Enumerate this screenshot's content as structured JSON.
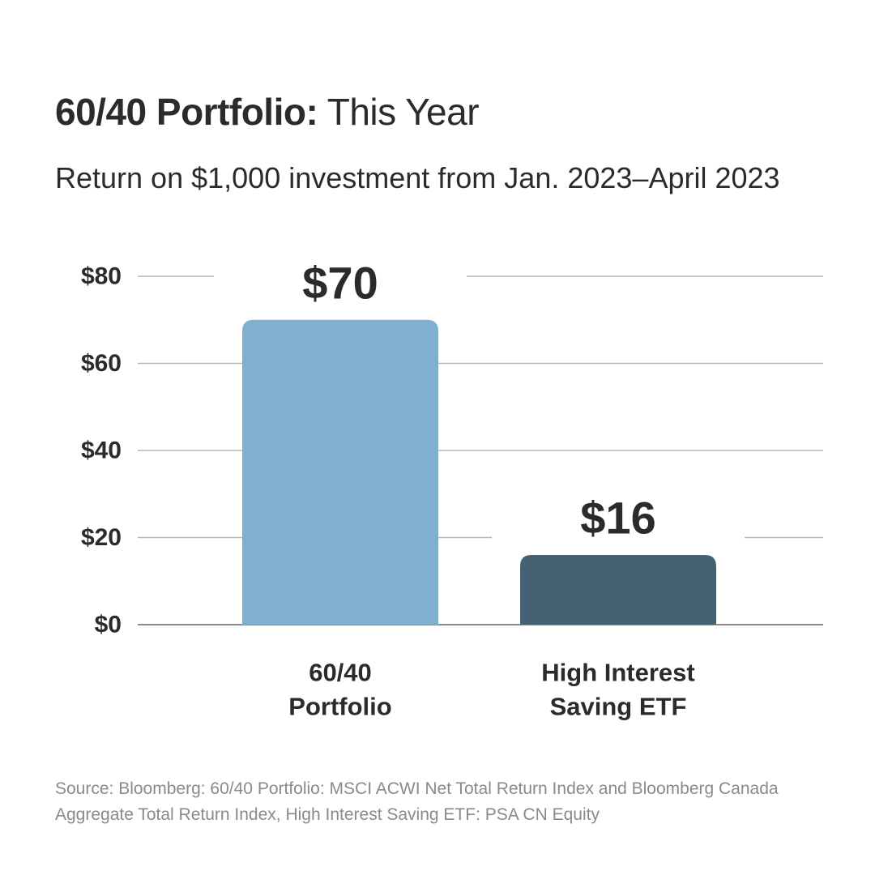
{
  "header": {
    "title_bold": "60/40 Portfolio:",
    "title_light": "This Year",
    "subtitle": "Return on $1,000 investment from Jan. 2023–April 2023"
  },
  "chart_data": {
    "type": "bar",
    "categories": [
      [
        "60/40",
        "Portfolio"
      ],
      [
        "High Interest",
        "Saving ETF"
      ]
    ],
    "values": [
      70,
      16
    ],
    "data_labels": [
      "$70",
      "$16"
    ],
    "bar_colors": [
      "#7fb0d0",
      "#456274"
    ],
    "ylim": [
      0,
      80
    ],
    "yticks": [
      0,
      20,
      40,
      60,
      80
    ],
    "ytick_labels": [
      "$0",
      "$20",
      "$40",
      "$60",
      "$80"
    ],
    "grid": true,
    "legend": "none"
  },
  "source": "Source: Bloomberg: 60/40 Portfolio: MSCI ACWI Net Total Return Index and Bloomberg Canada Aggregate Total Return Index, High Interest Saving ETF: PSA CN Equity"
}
